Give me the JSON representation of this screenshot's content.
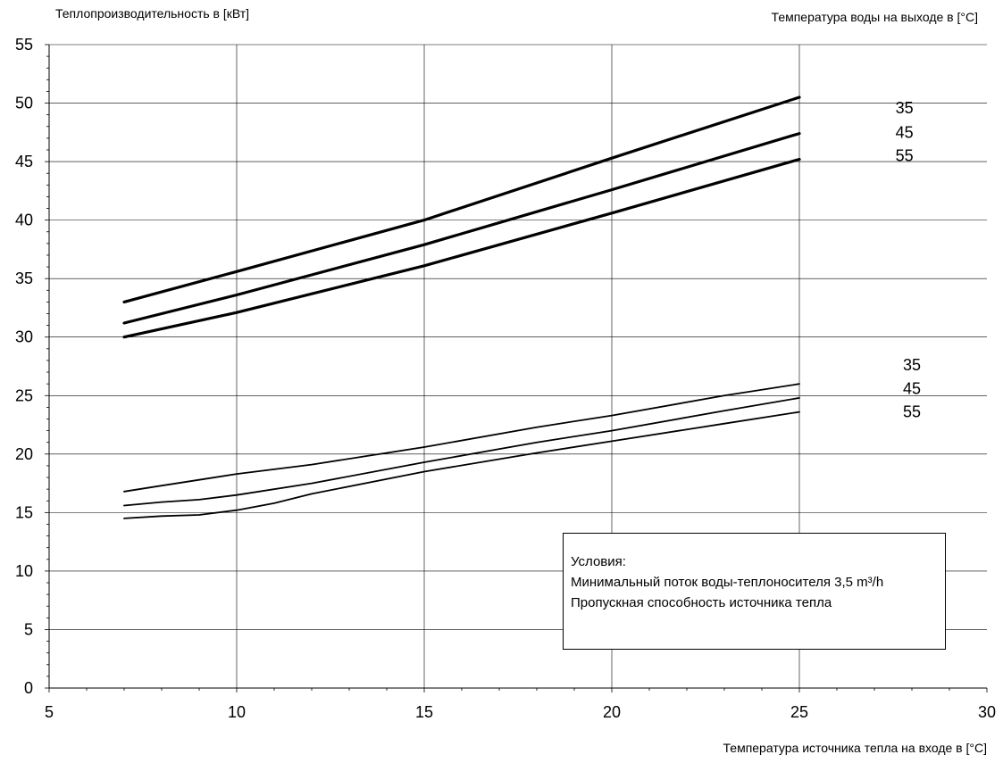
{
  "chart_data": {
    "type": "line",
    "title": "",
    "ylabel": "Теплопроизводительность в [кВт]",
    "xlabel": "Температура источника тепла на входе в [°C]",
    "legend_title": "Температура воды на выходе в [°C]",
    "xlim": [
      5,
      30
    ],
    "ylim": [
      0,
      55
    ],
    "x_ticks": [
      "5",
      "10",
      "15",
      "20",
      "25",
      "30"
    ],
    "y_ticks": [
      "0",
      "5",
      "10",
      "15",
      "20",
      "25",
      "30",
      "35",
      "40",
      "45",
      "50",
      "55"
    ],
    "grid": true,
    "series": [
      {
        "name": "35",
        "group": "upper",
        "points": [
          [
            7,
            33.0
          ],
          [
            10,
            35.6
          ],
          [
            15,
            40.0
          ],
          [
            20,
            45.3
          ],
          [
            25,
            50.5
          ]
        ]
      },
      {
        "name": "45",
        "group": "upper",
        "points": [
          [
            7,
            31.2
          ],
          [
            10,
            33.6
          ],
          [
            15,
            37.9
          ],
          [
            20,
            42.6
          ],
          [
            25,
            47.4
          ]
        ]
      },
      {
        "name": "55",
        "group": "upper",
        "points": [
          [
            7,
            30.0
          ],
          [
            10,
            32.1
          ],
          [
            15,
            36.1
          ],
          [
            20,
            40.6
          ],
          [
            25,
            45.2
          ]
        ]
      },
      {
        "name": "35",
        "group": "lower",
        "points": [
          [
            7,
            16.8
          ],
          [
            8,
            17.3
          ],
          [
            9,
            17.8
          ],
          [
            10,
            18.3
          ],
          [
            12,
            19.1
          ],
          [
            15,
            20.6
          ],
          [
            18,
            22.3
          ],
          [
            20,
            23.3
          ],
          [
            23,
            25.0
          ],
          [
            25,
            26.0
          ]
        ]
      },
      {
        "name": "45",
        "group": "lower",
        "points": [
          [
            7,
            15.6
          ],
          [
            8,
            15.9
          ],
          [
            9,
            16.1
          ],
          [
            10,
            16.5
          ],
          [
            12,
            17.5
          ],
          [
            15,
            19.3
          ],
          [
            18,
            21.0
          ],
          [
            20,
            22.0
          ],
          [
            23,
            23.7
          ],
          [
            25,
            24.8
          ]
        ]
      },
      {
        "name": "55",
        "group": "lower",
        "points": [
          [
            7,
            14.5
          ],
          [
            8,
            14.7
          ],
          [
            9,
            14.8
          ],
          [
            10,
            15.2
          ],
          [
            11,
            15.8
          ],
          [
            12,
            16.6
          ],
          [
            15,
            18.5
          ],
          [
            18,
            20.1
          ],
          [
            20,
            21.1
          ],
          [
            23,
            22.6
          ],
          [
            25,
            23.6
          ]
        ]
      }
    ],
    "series_labels": [
      {
        "text": "35",
        "x": 27.8,
        "y": 49.6
      },
      {
        "text": "45",
        "x": 27.8,
        "y": 47.5
      },
      {
        "text": "55",
        "x": 27.8,
        "y": 45.5
      },
      {
        "text": "35",
        "x": 28.0,
        "y": 27.6
      },
      {
        "text": "45",
        "x": 28.0,
        "y": 25.6
      },
      {
        "text": "55",
        "x": 28.0,
        "y": 23.6
      }
    ]
  },
  "conditions": {
    "title": "Условия:",
    "line1": "Минимальный поток воды-теплоносителя 3,5 m³/h",
    "line2": "Пропускная способность источника тепла"
  }
}
